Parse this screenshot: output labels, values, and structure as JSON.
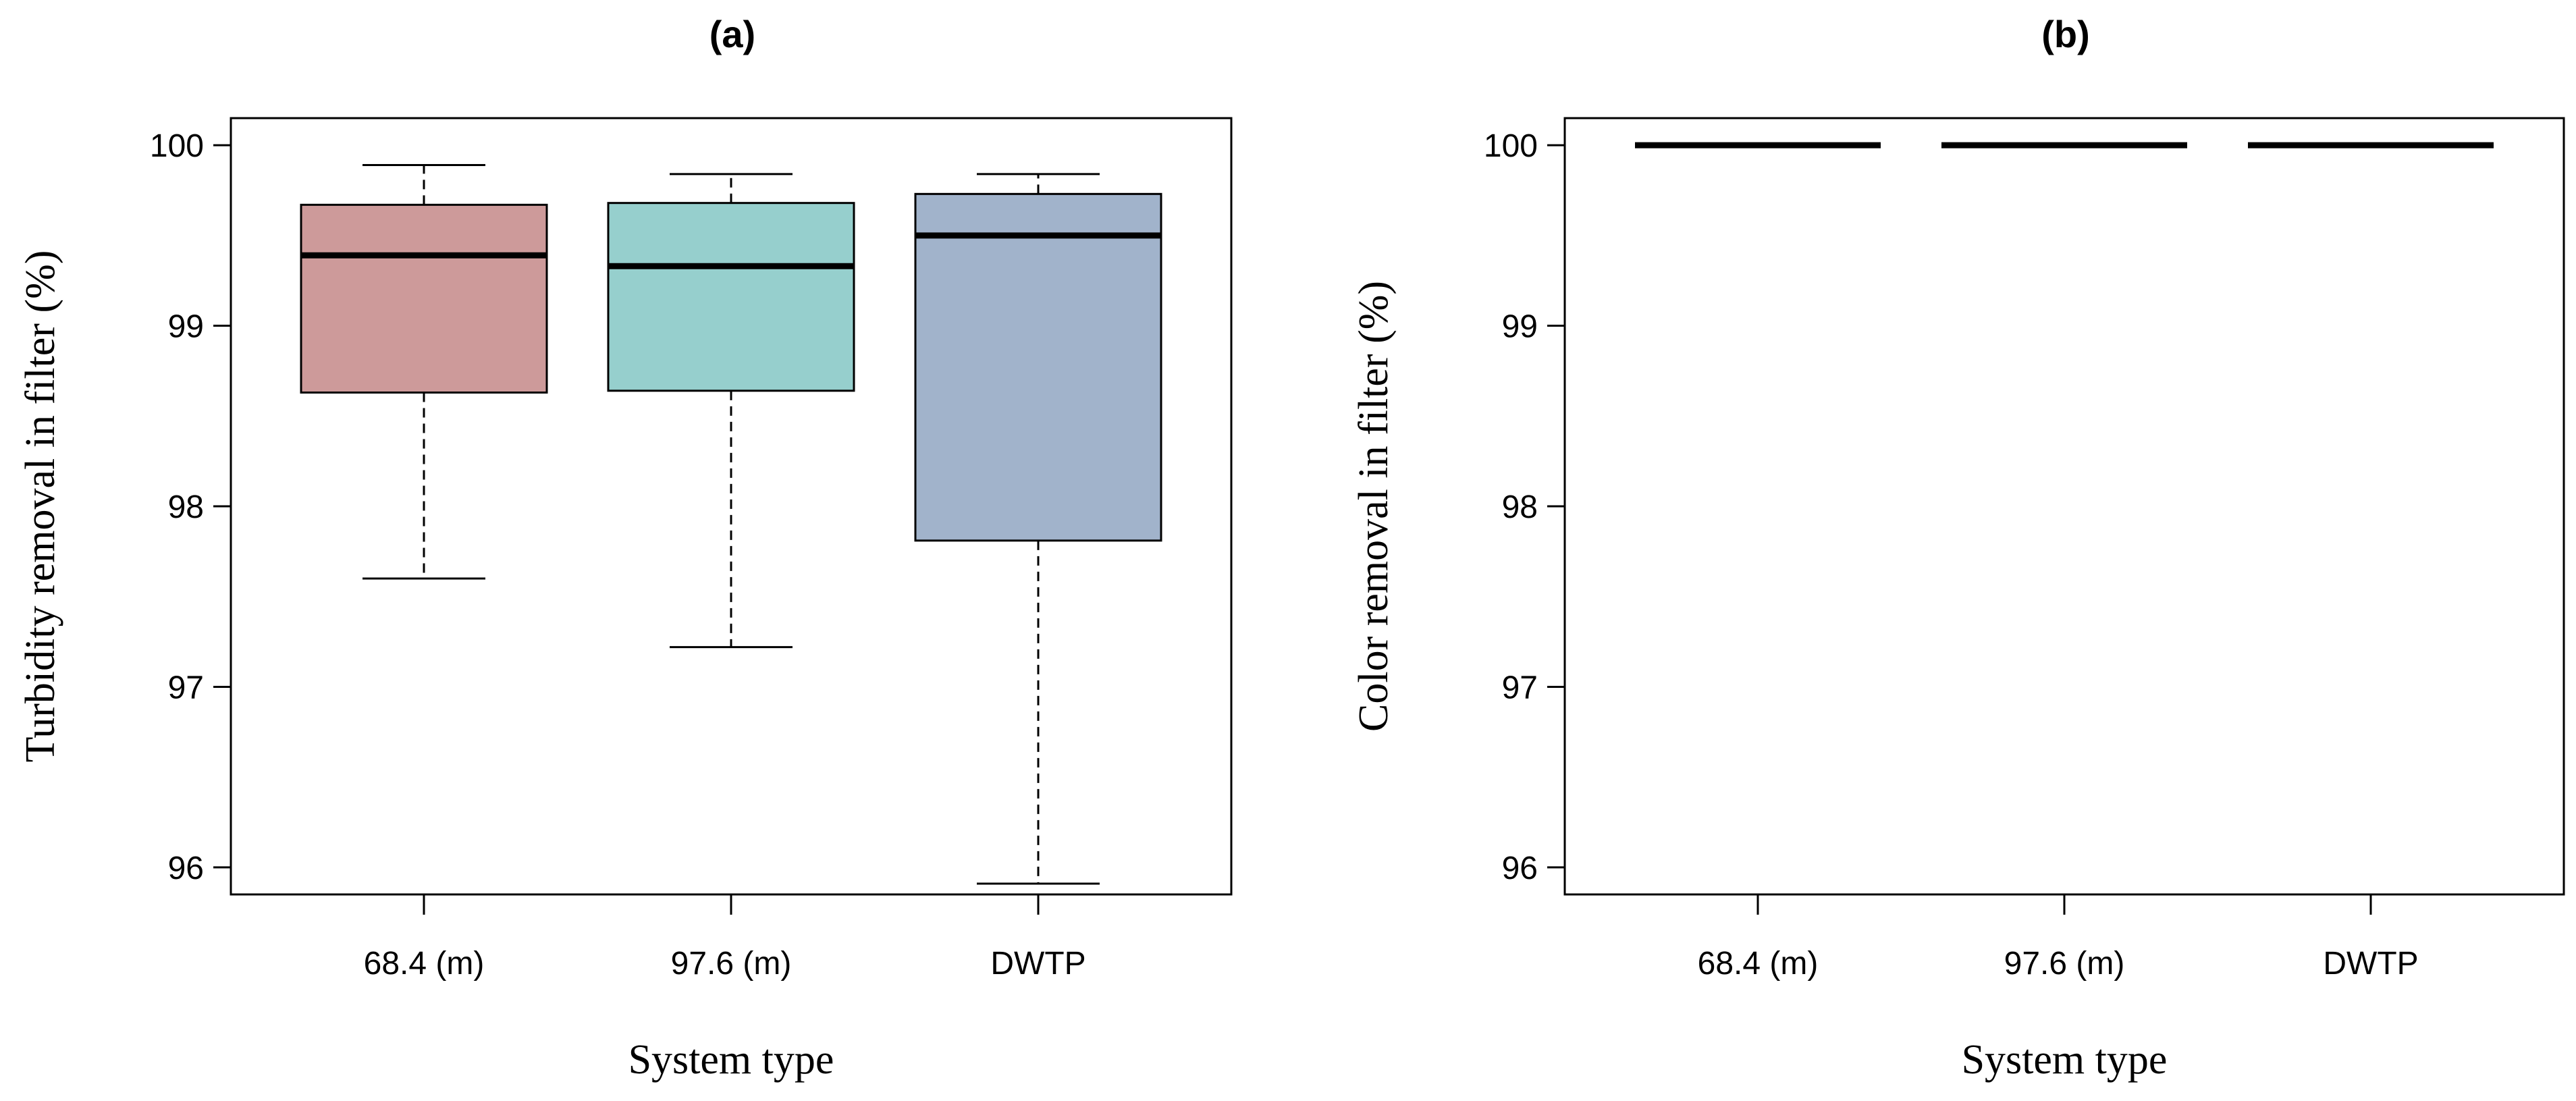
{
  "chart_data": [
    {
      "type": "box",
      "title": "(a)",
      "xlabel": "System type",
      "ylabel": "Turbidity removal in filter (%)",
      "ylim": [
        95.85,
        100.15
      ],
      "yticks": [
        "96",
        "97",
        "98",
        "99",
        "100"
      ],
      "categories": [
        "68.4 (m)",
        "97.6 (m)",
        "DWTP"
      ],
      "boxes": [
        {
          "name": "68.4 (m)",
          "whisker_low": 97.6,
          "q1": 98.63,
          "median": 99.39,
          "q3": 99.67,
          "whisker_high": 99.89,
          "color": "#cd9a9a"
        },
        {
          "name": "97.6 (m)",
          "whisker_low": 97.22,
          "q1": 98.64,
          "median": 99.33,
          "q3": 99.68,
          "whisker_high": 99.84,
          "color": "#96cfcd"
        },
        {
          "name": "DWTP",
          "whisker_low": 95.91,
          "q1": 97.81,
          "median": 99.5,
          "q3": 99.73,
          "whisker_high": 99.84,
          "color": "#a1b3cb"
        }
      ]
    },
    {
      "type": "box",
      "title": "(b)",
      "xlabel": "System type",
      "ylabel": "Color removal in filter (%)",
      "ylim": [
        95.85,
        100.15
      ],
      "yticks": [
        "96",
        "97",
        "98",
        "99",
        "100"
      ],
      "categories": [
        "68.4 (m)",
        "97.6 (m)",
        "DWTP"
      ],
      "boxes": [
        {
          "name": "68.4 (m)",
          "whisker_low": 100,
          "q1": 100,
          "median": 100,
          "q3": 100,
          "whisker_high": 100,
          "color": "#cd9a9a"
        },
        {
          "name": "97.6 (m)",
          "whisker_low": 100,
          "q1": 100,
          "median": 100,
          "q3": 100,
          "whisker_high": 100,
          "color": "#96cfcd"
        },
        {
          "name": "DWTP",
          "whisker_low": 100,
          "q1": 100,
          "median": 100,
          "q3": 100,
          "whisker_high": 100,
          "color": "#a1b3cb"
        }
      ]
    }
  ]
}
